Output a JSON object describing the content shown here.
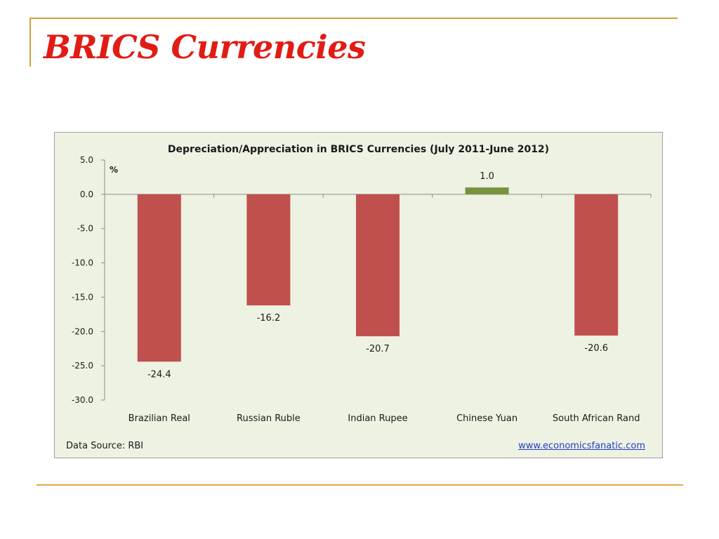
{
  "slide": {
    "title": "BRICS Currencies"
  },
  "chart_data": {
    "type": "bar",
    "title": "Depreciation/Appreciation in BRICS Currencies (July 2011-June 2012)",
    "unit_label": "%",
    "categories": [
      "Brazilian Real",
      "Russian Ruble",
      "Indian Rupee",
      "Chinese Yuan",
      "South African Rand"
    ],
    "values": [
      -24.4,
      -16.2,
      -20.7,
      1.0,
      -20.6
    ],
    "value_labels": [
      "-24.4",
      "-16.2",
      "-20.7",
      "1.0",
      "-20.6"
    ],
    "ylim": [
      -30,
      5
    ],
    "yticks": [
      5,
      0,
      -5,
      -10,
      -15,
      -20,
      -25,
      -30
    ],
    "ytick_labels": [
      "5.0",
      "0.0",
      "-5.0",
      "-10.0",
      "-15.0",
      "-20.0",
      "-25.0",
      "-30.0"
    ],
    "grid": false,
    "legend": "none",
    "colors": {
      "negative": "#c0504d",
      "positive": "#77933c",
      "background": "#eef2e2"
    },
    "source": "Data Source: RBI",
    "website": "www.economicsfanatic.com"
  }
}
